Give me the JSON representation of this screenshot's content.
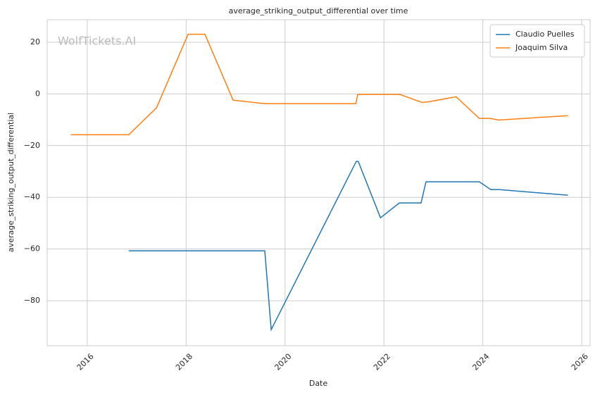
{
  "chart_data": {
    "type": "line",
    "title": "average_striking_output_differential over time",
    "x_label": "Date",
    "y_label": "average_striking_output_differential",
    "watermark": "WolfTickets.AI",
    "xlim": [
      2015.19,
      2026.17
    ],
    "xticks": [
      2016,
      2018,
      2020,
      2022,
      2024,
      2026
    ],
    "ylim": [
      -97.4,
      28.7
    ],
    "yticks": [
      {
        "value": -80,
        "label": "−80"
      },
      {
        "value": -60,
        "label": "−60"
      },
      {
        "value": -40,
        "label": "−40"
      },
      {
        "value": -20,
        "label": "−20"
      },
      0,
      20
    ],
    "grid": true,
    "legend": "upper right",
    "series": [
      {
        "name": "Claudio Puelles",
        "color": "#1f77b4",
        "x": [
          2016.84,
          2019.59,
          2019.72,
          2021.44,
          2021.48,
          2021.93,
          2022.31,
          2022.75,
          2022.85,
          2023.93,
          2024.16,
          2024.33,
          2025.72
        ],
        "values": [
          -60.7,
          -60.7,
          -91.2,
          -26.1,
          -26.1,
          -47.9,
          -42.2,
          -42.2,
          -34.0,
          -34.0,
          -37.0,
          -37.0,
          -39.2
        ]
      },
      {
        "name": "Joaquim Silva",
        "color": "#ff7f0e",
        "x": [
          2015.67,
          2016.84,
          2017.4,
          2018.04,
          2018.38,
          2018.95,
          2019.59,
          2021.43,
          2021.47,
          2022.32,
          2022.77,
          2022.92,
          2023.46,
          2023.93,
          2024.16,
          2024.32,
          2025.72
        ],
        "values": [
          -15.8,
          -15.8,
          -5.4,
          23.1,
          23.1,
          -2.4,
          -3.8,
          -3.8,
          -0.2,
          -0.2,
          -3.3,
          -3.0,
          -1.1,
          -9.5,
          -9.5,
          -10.1,
          -8.4
        ]
      }
    ]
  }
}
